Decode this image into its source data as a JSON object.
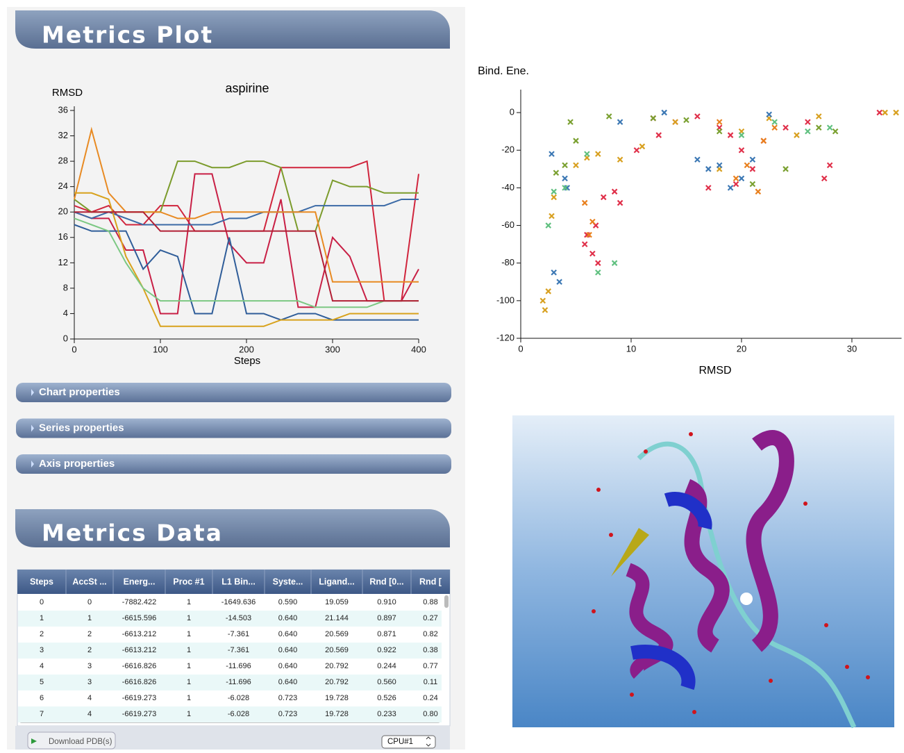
{
  "plot_panel": {
    "title": "Metrics Plot",
    "sections": [
      "Chart properties",
      "Series properties",
      "Axis properties"
    ]
  },
  "chart_data": [
    {
      "type": "line",
      "title": "aspirine",
      "y_label": "RMSD",
      "x_label": "Steps",
      "x": [
        0,
        20,
        40,
        60,
        80,
        100,
        120,
        140,
        160,
        180,
        200,
        220,
        240,
        260,
        280,
        300,
        320,
        340,
        360,
        380,
        400
      ],
      "xlim": [
        0,
        400
      ],
      "xticks": [
        0,
        100,
        200,
        300,
        400
      ],
      "ylim": [
        0,
        36
      ],
      "yticks": [
        0,
        4,
        8,
        12,
        16,
        20,
        24,
        28,
        32,
        36
      ],
      "series": [
        {
          "color": "#d0243c",
          "values": [
            21,
            20,
            21,
            18,
            18,
            21,
            21,
            17,
            17,
            17,
            17,
            17,
            27,
            27,
            27,
            27,
            27,
            28,
            6,
            6,
            26
          ]
        },
        {
          "color": "#c81f45",
          "values": [
            20,
            19,
            19,
            14,
            14,
            4,
            4,
            26,
            26,
            15,
            12,
            12,
            22,
            5,
            5,
            16,
            13,
            6,
            6,
            6,
            11
          ]
        },
        {
          "color": "#7b9b2b",
          "values": [
            22,
            20,
            20,
            20,
            20,
            20,
            28,
            28,
            27,
            27,
            28,
            28,
            27,
            17,
            17,
            25,
            24,
            24,
            23,
            23,
            23
          ]
        },
        {
          "color": "#3b6aa6",
          "values": [
            20,
            19,
            20,
            19,
            18,
            18,
            18,
            18,
            18,
            19,
            19,
            20,
            20,
            20,
            21,
            21,
            21,
            21,
            21,
            22,
            22
          ]
        },
        {
          "color": "#2f5d99",
          "values": [
            18,
            17,
            17,
            17,
            11,
            14,
            13,
            4,
            4,
            16,
            4,
            4,
            3,
            4,
            4,
            3,
            3,
            3,
            3,
            3,
            3
          ]
        },
        {
          "color": "#e88a22",
          "values": [
            22,
            33,
            23,
            20,
            20,
            20,
            19,
            19,
            20,
            20,
            20,
            20,
            20,
            20,
            20,
            9,
            9,
            9,
            9,
            9,
            9
          ]
        },
        {
          "color": "#d8a21c",
          "values": [
            23,
            23,
            22,
            13,
            8,
            2,
            2,
            2,
            2,
            2,
            2,
            2,
            3,
            3,
            3,
            3,
            4,
            4,
            4,
            4,
            4
          ]
        },
        {
          "color": "#7cc883",
          "values": [
            19,
            18,
            17,
            12,
            8,
            6,
            6,
            6,
            6,
            6,
            6,
            6,
            6,
            6,
            5,
            5,
            5,
            5,
            6,
            6,
            6
          ]
        },
        {
          "color": "#b21f35",
          "values": [
            20,
            20,
            20,
            20,
            20,
            17,
            17,
            17,
            17,
            17,
            17,
            17,
            17,
            17,
            17,
            6,
            6,
            6,
            6,
            6,
            6
          ]
        }
      ]
    },
    {
      "type": "scatter",
      "y_label": "Bind. Ene.",
      "x_label": "RMSD",
      "xlim": [
        0,
        34.5
      ],
      "xticks": [
        0,
        10,
        20,
        30
      ],
      "ylim": [
        -120,
        10
      ],
      "yticks": [
        -120,
        -100,
        -80,
        -60,
        -40,
        -20,
        0
      ],
      "series": [
        {
          "color": "#e0304a",
          "x": [
            6.5,
            7,
            6,
            5.8,
            6.8,
            7.5,
            8.5,
            9,
            12,
            14,
            16,
            18,
            19,
            20,
            21,
            22,
            24,
            26,
            27.5,
            28,
            32.5,
            12.5,
            10.5,
            17,
            19.5
          ],
          "values": [
            -75,
            -80,
            -65,
            -70,
            -60,
            -45,
            -42,
            -48,
            -3,
            -5,
            -2,
            -8,
            -12,
            -20,
            -30,
            -15,
            -8,
            -5,
            -35,
            -28,
            0,
            -12,
            -20,
            -40,
            -38
          ]
        },
        {
          "color": "#d8a020",
          "x": [
            2,
            2.2,
            2.5,
            3,
            2.8,
            5,
            6,
            7,
            9,
            11,
            14,
            18,
            20,
            22.5,
            25,
            27,
            33,
            34
          ],
          "values": [
            -100,
            -105,
            -95,
            -45,
            -55,
            -28,
            -24,
            -22,
            -25,
            -18,
            -5,
            -30,
            -10,
            -3,
            -12,
            -2,
            0,
            0
          ]
        },
        {
          "color": "#3c78b4",
          "x": [
            3,
            3.5,
            4,
            4.2,
            2.8,
            9,
            13,
            16,
            17,
            18,
            19,
            20,
            21,
            22.5
          ],
          "values": [
            -85,
            -90,
            -35,
            -40,
            -22,
            -5,
            0,
            -25,
            -30,
            -28,
            -40,
            -35,
            -25,
            -1
          ]
        },
        {
          "color": "#7aa030",
          "x": [
            3.2,
            4,
            4.5,
            5,
            8,
            12,
            15,
            18,
            21,
            24,
            27,
            28.5
          ],
          "values": [
            -32,
            -28,
            -5,
            -15,
            -2,
            -3,
            -4,
            -10,
            -38,
            -30,
            -8,
            -10
          ]
        },
        {
          "color": "#60c080",
          "x": [
            2.5,
            3,
            4,
            6,
            7,
            8.5,
            20,
            23,
            26,
            28
          ],
          "values": [
            -60,
            -42,
            -40,
            -22,
            -85,
            -80,
            -12,
            -5,
            -10,
            -8
          ]
        },
        {
          "color": "#e8801e",
          "x": [
            5.8,
            6.2,
            6.5,
            18,
            19.5,
            20.5,
            21.5,
            22,
            23
          ],
          "values": [
            -48,
            -65,
            -58,
            -5,
            -35,
            -28,
            -42,
            -15,
            -8
          ]
        }
      ]
    }
  ],
  "data_panel": {
    "title": "Metrics Data",
    "table": {
      "columns": [
        "Steps",
        "AccSt ...",
        "Energ...",
        "Proc #1",
        "L1 Bin...",
        "Syste...",
        "Ligand...",
        "Rnd [0...",
        "Rnd ["
      ],
      "rows": [
        [
          "0",
          "0",
          "-7882.422",
          "1",
          "-1649.636",
          "0.590",
          "19.059",
          "0.910",
          "0.88"
        ],
        [
          "1",
          "1",
          "-6615.596",
          "1",
          "-14.503",
          "0.640",
          "21.144",
          "0.897",
          "0.27"
        ],
        [
          "2",
          "2",
          "-6613.212",
          "1",
          "-7.361",
          "0.640",
          "20.569",
          "0.871",
          "0.82"
        ],
        [
          "3",
          "2",
          "-6613.212",
          "1",
          "-7.361",
          "0.640",
          "20.569",
          "0.922",
          "0.38"
        ],
        [
          "4",
          "3",
          "-6616.826",
          "1",
          "-11.696",
          "0.640",
          "20.792",
          "0.244",
          "0.77"
        ],
        [
          "5",
          "3",
          "-6616.826",
          "1",
          "-11.696",
          "0.640",
          "20.792",
          "0.560",
          "0.11"
        ],
        [
          "6",
          "4",
          "-6619.273",
          "1",
          "-6.028",
          "0.723",
          "19.728",
          "0.526",
          "0.24"
        ],
        [
          "7",
          "4",
          "-6619.273",
          "1",
          "-6.028",
          "0.723",
          "19.728",
          "0.233",
          "0.80"
        ]
      ]
    },
    "download": "Download PDB(s)",
    "cpu": "CPU#1"
  }
}
